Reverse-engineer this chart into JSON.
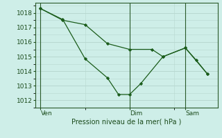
{
  "bg_color": "#ceeee8",
  "grid_color": "#b8d8d0",
  "line_color": "#1a5c1a",
  "marker_color": "#1a5c1a",
  "xlabel": "Pression niveau de la mer( hPa )",
  "ylim": [
    1011.5,
    1018.7
  ],
  "yticks": [
    1012,
    1013,
    1014,
    1015,
    1016,
    1017,
    1018
  ],
  "xtick_labels": [
    "Ven",
    "Dim",
    "Sam"
  ],
  "xtick_positions": [
    0.0,
    0.533,
    0.867
  ],
  "vline_positions": [
    0.0,
    0.533,
    0.867
  ],
  "series1_x": [
    0.0,
    0.133,
    0.267,
    0.4,
    0.533,
    0.667,
    0.733,
    0.867,
    1.0
  ],
  "series1_y": [
    1018.3,
    1017.5,
    1017.2,
    1015.9,
    1015.5,
    1015.5,
    1015.0,
    1015.6,
    1013.8
  ],
  "series2_x": [
    0.0,
    0.133,
    0.267,
    0.4,
    0.467,
    0.533,
    0.6,
    0.733,
    0.867,
    0.933,
    1.0
  ],
  "series2_y": [
    1018.3,
    1017.55,
    1014.85,
    1013.55,
    1012.4,
    1012.4,
    1013.15,
    1015.0,
    1015.6,
    1014.75,
    1013.8
  ],
  "figsize": [
    3.2,
    2.0
  ],
  "dpi": 100
}
